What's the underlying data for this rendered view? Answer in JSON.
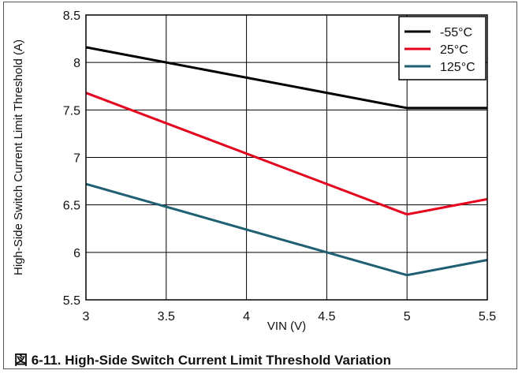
{
  "caption": "図 6-11. High-Side Switch Current Limit Threshold Variation",
  "chart_data": {
    "type": "line",
    "title": "",
    "xlabel": "VIN (V)",
    "ylabel": "High-Side Switch Current Limit Threshold (A)",
    "xlim": [
      3,
      5.5
    ],
    "ylim": [
      5.5,
      8.5
    ],
    "xticks": [
      3,
      3.5,
      4,
      4.5,
      5,
      5.5
    ],
    "yticks": [
      5.5,
      6,
      6.5,
      7,
      7.5,
      8,
      8.5
    ],
    "xtick_labels": [
      "3",
      "3.5",
      "4",
      "4.5",
      "5",
      "5.5"
    ],
    "ytick_labels": [
      "5.5",
      "6",
      "6.5",
      "7",
      "7.5",
      "8",
      "8.5"
    ],
    "grid": true,
    "legend_position": "top-right",
    "series": [
      {
        "name": "-55°C",
        "color": "#000000",
        "x": [
          3,
          5,
          5.5
        ],
        "y": [
          8.16,
          7.52,
          7.52
        ]
      },
      {
        "name": "25°C",
        "color": "#e8001c",
        "x": [
          3,
          5,
          5.5
        ],
        "y": [
          7.68,
          6.4,
          6.56
        ]
      },
      {
        "name": "125°C",
        "color": "#1f5f73",
        "x": [
          3,
          5,
          5.5
        ],
        "y": [
          6.72,
          5.76,
          5.92
        ]
      }
    ]
  }
}
